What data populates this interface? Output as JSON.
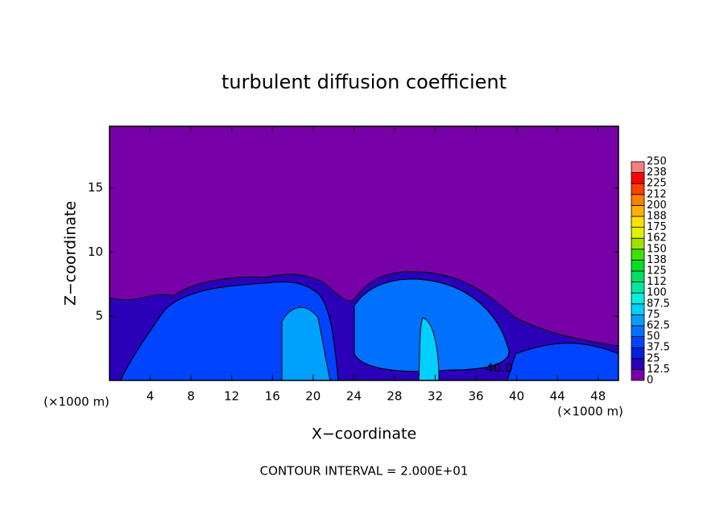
{
  "chart_data": {
    "type": "contour",
    "title": "turbulent diffusion coefficient",
    "x_label": "X−coordinate",
    "y_label": "Z−coordinate",
    "x_unit": "(×1000 m)",
    "y_unit": "(×1000 m)",
    "footer": "CONTOUR INTERVAL = 2.000E+01",
    "contour_labels": [
      "40.0"
    ],
    "xlim": [
      0,
      50
    ],
    "xticks": [
      4,
      8,
      12,
      16,
      20,
      24,
      28,
      32,
      36,
      40,
      44,
      48
    ],
    "ylim": [
      0,
      19.8
    ],
    "yticks": [
      5,
      10,
      15
    ],
    "colorbar": {
      "levels": [
        0,
        12.5,
        25,
        37.5,
        50,
        62.5,
        75,
        87.5,
        100,
        112,
        125,
        138,
        150,
        162,
        175,
        188,
        200,
        212,
        225,
        238,
        250
      ],
      "colors": [
        "#7800a8",
        "#2a00b8",
        "#0020e0",
        "#0044ff",
        "#0070ff",
        "#00a0ff",
        "#00d0ff",
        "#00f0e0",
        "#00e8a0",
        "#00e060",
        "#00e020",
        "#40e000",
        "#a0e000",
        "#e0f000",
        "#ffe000",
        "#ffb000",
        "#ff8000",
        "#ff4000",
        "#ff0000",
        "#f08080"
      ]
    }
  }
}
